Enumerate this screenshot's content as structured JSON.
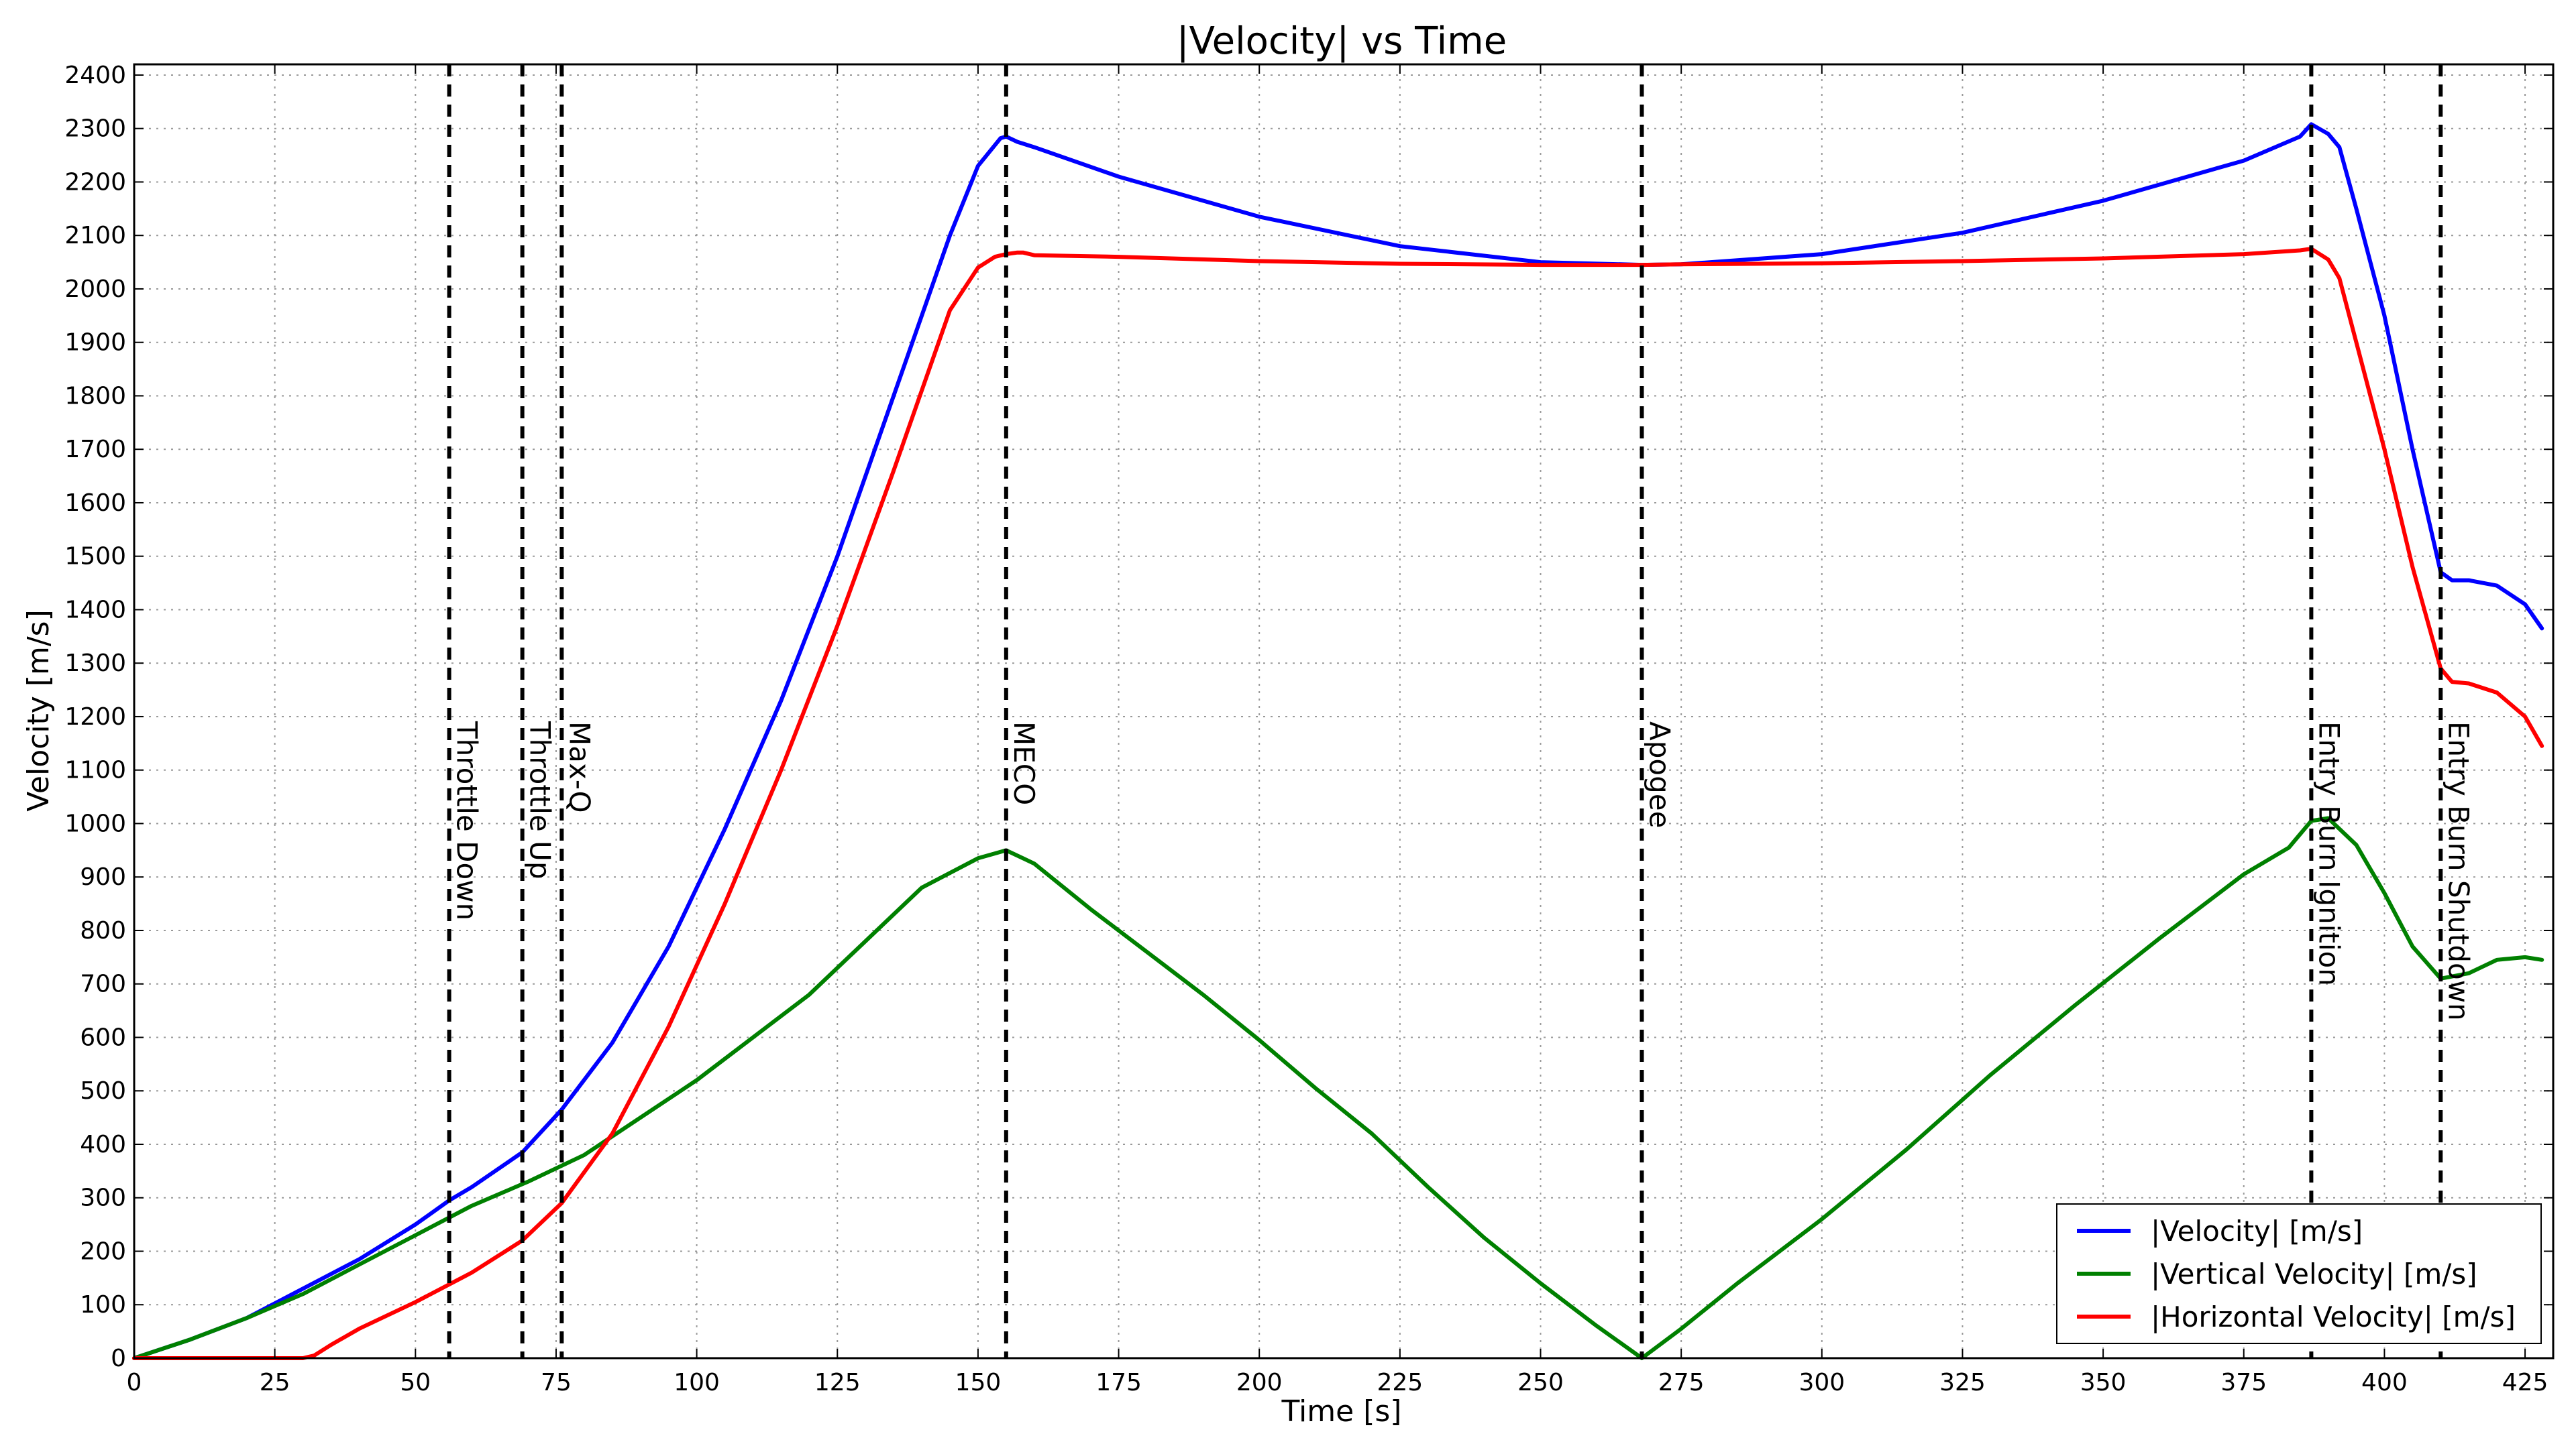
{
  "chart_data": {
    "type": "line",
    "title": "|Velocity| vs Time",
    "xlabel": "Time [s]",
    "ylabel": "Velocity [m/s]",
    "xlim": [
      0,
      430
    ],
    "ylim": [
      0,
      2420
    ],
    "xticks": [
      0,
      25,
      50,
      75,
      100,
      125,
      150,
      175,
      200,
      225,
      250,
      275,
      300,
      325,
      350,
      375,
      400,
      425
    ],
    "yticks": [
      0,
      100,
      200,
      300,
      400,
      500,
      600,
      700,
      800,
      900,
      1000,
      1100,
      1200,
      1300,
      1400,
      1500,
      1600,
      1700,
      1800,
      1900,
      2000,
      2100,
      2200,
      2300,
      2400
    ],
    "grid": true,
    "legend_position": "bottom-right",
    "events": [
      {
        "label": "Throttle Down",
        "x": 56
      },
      {
        "label": "Throttle Up",
        "x": 69
      },
      {
        "label": "Max-Q",
        "x": 76
      },
      {
        "label": "MECO",
        "x": 155
      },
      {
        "label": "Apogee",
        "x": 268
      },
      {
        "label": "Entry Burn Ignition",
        "x": 387
      },
      {
        "label": "Entry Burn Shutdown",
        "x": 410
      }
    ],
    "series": [
      {
        "name": "|Velocity| [m/s]",
        "color": "#0000ff",
        "x": [
          0,
          10,
          20,
          30,
          40,
          50,
          56,
          60,
          69,
          76,
          85,
          95,
          105,
          115,
          125,
          135,
          145,
          150,
          154,
          155,
          157,
          160,
          175,
          200,
          225,
          250,
          268,
          275,
          300,
          325,
          350,
          375,
          385,
          387,
          390,
          392,
          395,
          400,
          405,
          410,
          412,
          415,
          420,
          425,
          428
        ],
        "y": [
          0,
          35,
          75,
          130,
          185,
          250,
          295,
          320,
          385,
          465,
          590,
          770,
          990,
          1230,
          1500,
          1800,
          2100,
          2230,
          2282,
          2285,
          2275,
          2265,
          2210,
          2135,
          2080,
          2050,
          2045,
          2046,
          2065,
          2105,
          2165,
          2240,
          2285,
          2308,
          2290,
          2265,
          2150,
          1950,
          1700,
          1470,
          1455,
          1455,
          1445,
          1410,
          1365
        ]
      },
      {
        "name": "|Vertical Velocity| [m/s]",
        "color": "#008000",
        "x": [
          0,
          10,
          20,
          30,
          40,
          50,
          60,
          70,
          80,
          90,
          100,
          110,
          120,
          130,
          140,
          150,
          155,
          160,
          170,
          180,
          190,
          200,
          210,
          220,
          230,
          240,
          250,
          260,
          268,
          275,
          285,
          300,
          315,
          330,
          345,
          360,
          375,
          383,
          387,
          390,
          395,
          400,
          405,
          410,
          415,
          420,
          425,
          428
        ],
        "y": [
          0,
          35,
          75,
          120,
          175,
          230,
          285,
          330,
          380,
          450,
          520,
          600,
          680,
          780,
          880,
          935,
          950,
          925,
          840,
          760,
          680,
          595,
          505,
          420,
          320,
          225,
          140,
          60,
          0,
          55,
          140,
          260,
          390,
          530,
          660,
          785,
          905,
          955,
          1005,
          1010,
          960,
          870,
          770,
          710,
          720,
          745,
          750,
          745
        ]
      },
      {
        "name": "|Horizontal Velocity| [m/s]",
        "color": "#ff0000",
        "x": [
          0,
          10,
          20,
          30,
          32,
          35,
          40,
          50,
          60,
          69,
          76,
          85,
          95,
          105,
          115,
          125,
          135,
          145,
          150,
          153,
          155,
          157,
          158,
          160,
          175,
          200,
          225,
          250,
          268,
          275,
          300,
          325,
          350,
          375,
          385,
          387,
          390,
          392,
          395,
          400,
          405,
          410,
          412,
          415,
          420,
          425,
          428
        ],
        "y": [
          0,
          0,
          0,
          0,
          5,
          25,
          55,
          105,
          160,
          220,
          290,
          420,
          620,
          850,
          1100,
          1370,
          1660,
          1960,
          2040,
          2060,
          2065,
          2068,
          2068,
          2063,
          2060,
          2052,
          2047,
          2045,
          2045,
          2046,
          2048,
          2052,
          2057,
          2065,
          2072,
          2075,
          2055,
          2020,
          1900,
          1700,
          1480,
          1290,
          1265,
          1262,
          1245,
          1200,
          1145
        ]
      }
    ]
  }
}
